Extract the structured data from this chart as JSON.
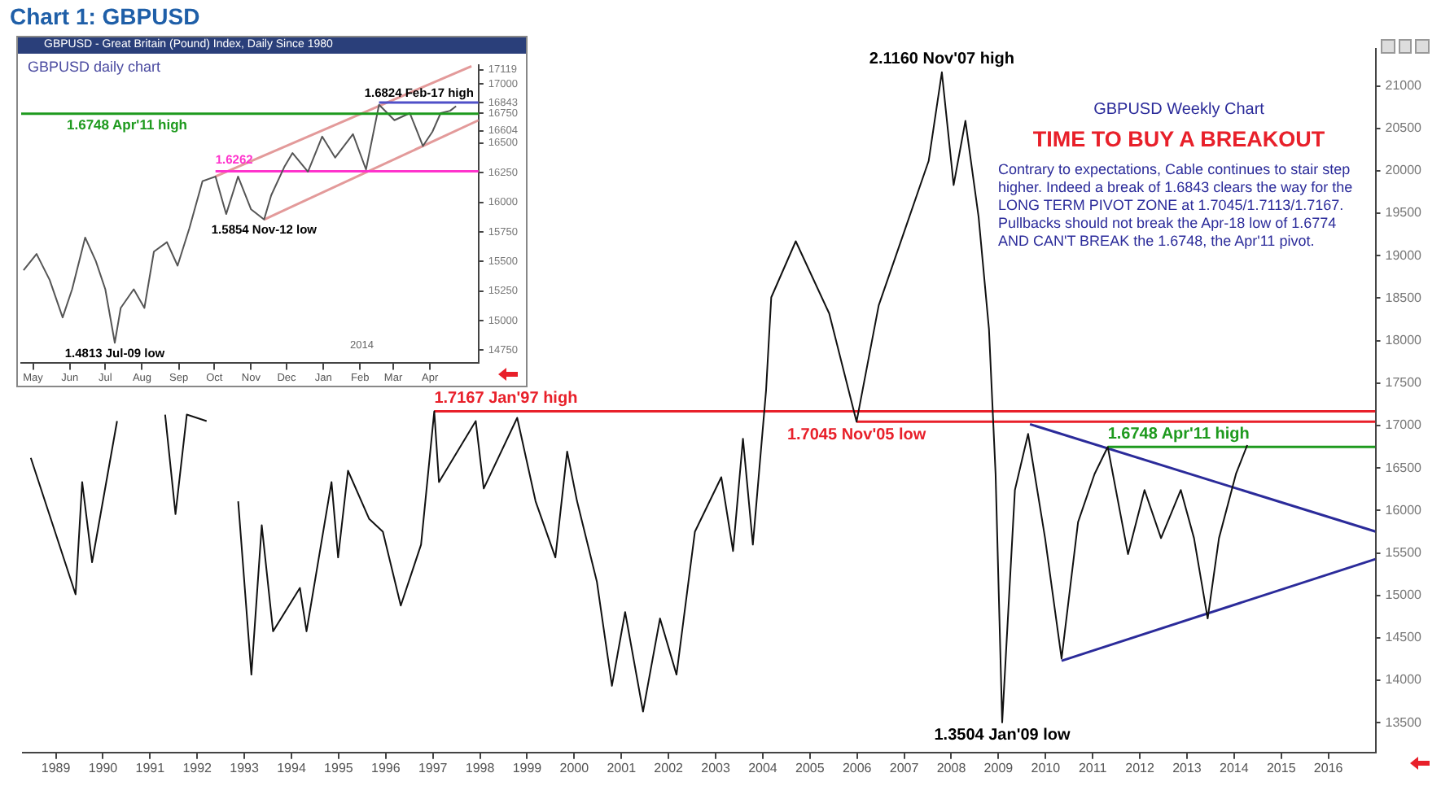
{
  "chart_data": [
    {
      "type": "line",
      "title": "Chart 1: GBPUSD",
      "xlim": [
        1988.3,
        2017.0
      ],
      "xticks": [
        1989,
        1990,
        1991,
        1992,
        1993,
        1994,
        1995,
        1996,
        1997,
        1998,
        1999,
        2000,
        2001,
        2002,
        2003,
        2004,
        2005,
        2006,
        2007,
        2008,
        2009,
        2010,
        2011,
        2012,
        2013,
        2014,
        2015,
        2016
      ],
      "ylim": [
        13150,
        21440
      ],
      "yticks": [
        13500,
        14000,
        14500,
        15000,
        15500,
        16000,
        16500,
        17000,
        17500,
        18000,
        18500,
        19000,
        19500,
        20000,
        20500,
        21000
      ],
      "series": [
        {
          "color": "#111111",
          "x": [
            1988.47,
            1989.42,
            1989.56,
            1989.77,
            1990.3,
            1990.6,
            1991.32,
            1991.54,
            1991.78,
            1992.2,
            1992.4,
            1992.87,
            1993.15,
            1993.37,
            1993.61,
            1994.18,
            1994.32,
            1994.85,
            1994.99,
            1995.2,
            1995.65,
            1995.94,
            1996.32,
            1996.75,
            1997.03,
            1997.13,
            1997.91,
            1998.08,
            1998.79,
            1999.18,
            1999.6,
            1999.85,
            2000.06,
            2000.48,
            2000.8,
            2001.08,
            2001.46,
            2001.82,
            2002.17,
            2002.56,
            2003.12,
            2003.37,
            2003.58,
            2003.79,
            2004.07,
            2004.18,
            2004.7,
            2005.41,
            2005.99,
            2006.46,
            2006.99,
            2007.52,
            2007.8,
            2008.05,
            2008.3,
            2008.58,
            2008.8,
            2008.94,
            2009.08,
            2009.35,
            2009.63,
            2009.99,
            2010.34,
            2010.69,
            2011.04,
            2011.32,
            2011.75,
            2012.1,
            2012.45,
            2012.87,
            2013.15,
            2013.44,
            2013.68,
            2014.04,
            2014.28
          ],
          "values": [
            16619,
            15012,
            16335,
            15390,
            17053,
            null,
            17129,
            15957,
            17129,
            17053,
            null,
            16108,
            14067,
            15825,
            14577,
            15088,
            14577,
            16335,
            15447,
            16468,
            15900,
            15749,
            14880,
            15598,
            17167,
            16335,
            17053,
            16259,
            17091,
            16108,
            15447,
            16694,
            16108,
            15163,
            13935,
            14804,
            13632,
            14728,
            14067,
            15749,
            16392,
            15522,
            16845,
            15598,
            17412,
            18509,
            19170,
            18320,
            17045,
            18414,
            19265,
            20116,
            21160,
            19832,
            20588,
            19454,
            18131,
            16430,
            13504,
            16241,
            16902,
            15674,
            14256,
            15863,
            16430,
            16748,
            15485,
            16241,
            15674,
            16241,
            15674,
            14728,
            15674,
            16430,
            16770
          ]
        },
        {
          "color": "#e8202a",
          "x": [
            1997.03,
            2017.0
          ],
          "values": [
            17167,
            17167
          ]
        },
        {
          "color": "#e8202a",
          "x": [
            2005.99,
            2017.0
          ],
          "values": [
            17045,
            17045
          ]
        },
        {
          "color": "#1e9a1e",
          "x": [
            2011.32,
            2017.0
          ],
          "values": [
            16748,
            16748
          ]
        },
        {
          "color": "#2b2b9a",
          "x": [
            2009.67,
            2017.0
          ],
          "values": [
            17015,
            15752
          ]
        },
        {
          "color": "#2b2b9a",
          "x": [
            2010.34,
            2017.0
          ],
          "values": [
            14230,
            15428
          ]
        }
      ],
      "annotations": [
        "GBPUSD Weekly Chart",
        "TIME TO BUY A BREAKOUT",
        "Contrary to expectations, Cable continues to stair step higher. Indeed a break of 1.6843  clears the way for the LONG TERM PIVOT ZONE at 1.7045/1.7113/1.7167. Pullbacks should not break the Apr-18 low of 1.6774 AND CAN'T BREAK the 1.6748, the  Apr'11 pivot.",
        {
          "text": "2.1160 Nov'07 high",
          "x": 2007.8,
          "y": 21160
        },
        {
          "text": "1.3504 Jan'09 low",
          "x": 2009.08,
          "y": 13504
        },
        {
          "text": "1.7167 Jan'97 high",
          "x": 1997.03,
          "y": 17167
        },
        {
          "text": "1.7045 Nov'05 low",
          "x": 2005.99,
          "y": 17045
        },
        {
          "text": "1.6748 Apr'11 high",
          "x": 2011.32,
          "y": 16748
        }
      ]
    },
    {
      "type": "line",
      "title": "GBPUSD - Great Britain (Pound) Index, Daily Since 1980",
      "xlim": [
        "2013-04-21",
        "2014-05-12"
      ],
      "xticks": [
        {
          "value": "2013-05-01",
          "label": "May"
        },
        {
          "value": "2013-06-01",
          "label": "Jun"
        },
        {
          "value": "2013-07-01",
          "label": "Jul"
        },
        {
          "value": "2013-08-01",
          "label": "Aug"
        },
        {
          "value": "2013-09-01",
          "label": "Sep"
        },
        {
          "value": "2013-10-01",
          "label": "Oct"
        },
        {
          "value": "2013-11-01",
          "label": "Nov"
        },
        {
          "value": "2013-12-01",
          "label": "Dec"
        },
        {
          "value": "2014-01-01",
          "label": "Jan"
        },
        {
          "value": "2014-02-01",
          "label": "Feb"
        },
        {
          "value": "2014-03-01",
          "label": "Mar"
        },
        {
          "value": "2014-04-01",
          "label": "Apr"
        }
      ],
      "ylim": [
        14640,
        17160
      ],
      "yticks": [
        14750,
        15000,
        15250,
        15500,
        15750,
        16000,
        16250,
        16500,
        16604,
        16750,
        16843,
        17000,
        17119
      ],
      "series": [
        {
          "color": "#555555",
          "x": [
            "2013-04-23",
            "2013-05-04",
            "2013-05-15",
            "2013-05-26",
            "2013-06-03",
            "2013-06-14",
            "2013-06-23",
            "2013-07-01",
            "2013-07-09",
            "2013-07-14",
            "2013-07-25",
            "2013-08-03",
            "2013-08-11",
            "2013-08-22",
            "2013-08-31",
            "2013-09-10",
            "2013-09-21",
            "2013-10-02",
            "2013-10-11",
            "2013-10-21",
            "2013-11-01",
            "2013-11-12",
            "2013-11-18",
            "2013-11-29",
            "2013-12-06",
            "2013-12-19",
            "2013-12-31",
            "2014-01-11",
            "2014-01-26",
            "2014-02-06",
            "2014-02-17",
            "2014-03-02",
            "2014-03-15",
            "2014-03-26",
            "2014-04-03",
            "2014-04-10",
            "2014-04-18",
            "2014-04-23"
          ],
          "values": [
            15425,
            15563,
            15345,
            15027,
            15265,
            15702,
            15503,
            15265,
            14813,
            15107,
            15265,
            15107,
            15583,
            15663,
            15464,
            15782,
            16178,
            16217,
            15900,
            16217,
            15940,
            15854,
            16059,
            16297,
            16416,
            16258,
            16555,
            16377,
            16575,
            16277,
            16824,
            16693,
            16753,
            16475,
            16595,
            16753,
            16773,
            16812
          ]
        },
        {
          "color": "#ff33cc",
          "x": [
            "2013-10-02",
            "2014-05-12"
          ],
          "values": [
            16262,
            16262
          ]
        },
        {
          "color": "#5050c8",
          "x": [
            "2014-02-17",
            "2014-05-12"
          ],
          "values": [
            16843,
            16843
          ]
        },
        {
          "color": "#e39a9a",
          "x": [
            "2013-10-02",
            "2014-05-06"
          ],
          "values": [
            16217,
            17150
          ]
        },
        {
          "color": "#e39a9a",
          "x": [
            "2013-11-12",
            "2014-05-12"
          ],
          "values": [
            15854,
            16693
          ]
        }
      ],
      "ref_lines": [
        {
          "axis": "y",
          "value": 16748,
          "label": "1.6748 Apr'11 high",
          "color": "#1e9a1e"
        }
      ],
      "annotations": [
        "GBPUSD daily chart",
        {
          "text": "1.6824 Feb-17 high",
          "x": "2014-02-17",
          "y": 16824
        },
        {
          "text": "1.6262",
          "x": "2013-10-02",
          "y": 16262
        },
        {
          "text": "1.5854 Nov-12 low",
          "x": "2013-11-12",
          "y": 15854
        },
        {
          "text": "1.4813 Jul-09 low",
          "x": "2013-07-09",
          "y": 14813
        },
        "2014"
      ]
    }
  ]
}
